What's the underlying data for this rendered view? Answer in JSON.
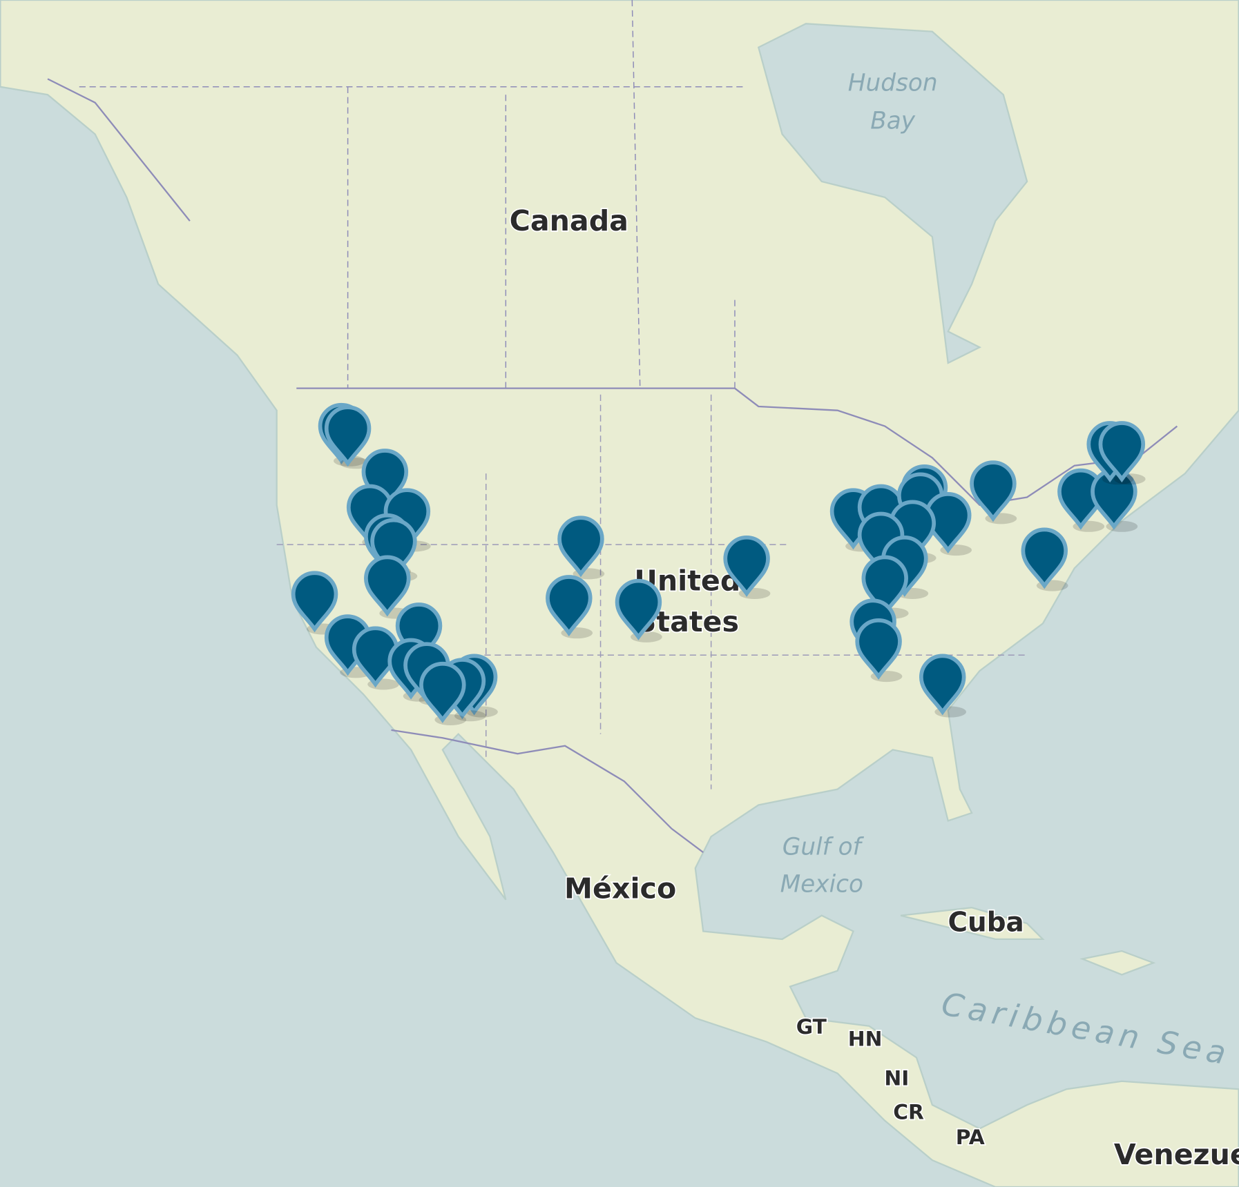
{
  "map": {
    "labels": {
      "canada": "Canada",
      "united_states_line1": "United",
      "united_states_line2": "States",
      "mexico": "México",
      "cuba": "Cuba",
      "venezuela": "Venezue",
      "gt": "GT",
      "hn": "HN",
      "ni": "NI",
      "cr": "CR",
      "pa": "PA"
    },
    "water_labels": {
      "hudson_1": "Hudson",
      "hudson_2": "Bay",
      "gulf_1": "Gulf of",
      "gulf_2": "Mexico",
      "caribbean": "Caribbean Sea"
    },
    "colors": {
      "sea": "#cbdcdc",
      "land": "#e9edd3",
      "marker": "#005a80",
      "marker_outline": "#6aa7c7",
      "border": "#8e8cb8"
    },
    "marker_icon": "map-pin-icon"
  }
}
